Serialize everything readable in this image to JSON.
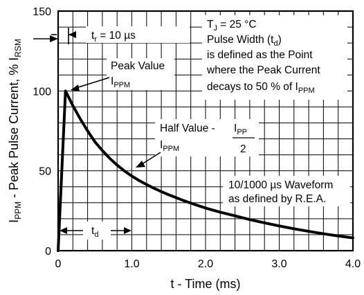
{
  "chart_data": {
    "type": "line",
    "xlabel": "t - Time (ms)",
    "ylabel_main": "I",
    "ylabel_sub": "PPM",
    "ylabel_rest": " - Peak Pulse Current, % ",
    "ylabel_main2": "I",
    "ylabel_sub2": "RSM",
    "xlim": [
      0,
      4.0
    ],
    "ylim": [
      0,
      150
    ],
    "x_ticks": [
      {
        "value": 0,
        "label": "0"
      },
      {
        "value": 1,
        "label": "1.0"
      },
      {
        "value": 2,
        "label": "2.0"
      },
      {
        "value": 3,
        "label": "3.0"
      },
      {
        "value": 4,
        "label": "4.0"
      }
    ],
    "y_ticks": [
      {
        "value": 0,
        "label": "0"
      },
      {
        "value": 50,
        "label": "50"
      },
      {
        "value": 100,
        "label": "100"
      },
      {
        "value": 150,
        "label": "150"
      }
    ],
    "x_minor_step": 0.2,
    "y_minor_step": 10,
    "grid": true,
    "series": [
      {
        "x": [
          0,
          0.1,
          0.2,
          0.3,
          0.4,
          0.5,
          0.6,
          0.7,
          0.8,
          0.9,
          1.0,
          1.1,
          1.2,
          1.3,
          1.4,
          1.5,
          1.6,
          1.7,
          1.8,
          1.9,
          2.0,
          2.2,
          2.4,
          2.6,
          2.8,
          3.0,
          3.2,
          3.4,
          3.6,
          3.8,
          4.0
        ],
        "y": [
          0,
          100,
          90.8,
          82.5,
          75.0,
          68.1,
          62.7,
          57.8,
          53.6,
          49.9,
          46.7,
          43.9,
          41.4,
          39.1,
          37.0,
          35.0,
          33.2,
          31.4,
          29.8,
          28.2,
          26.7,
          24.1,
          21.8,
          19.5,
          17.4,
          15.5,
          13.7,
          12.1,
          10.6,
          9.2,
          8.0
        ]
      }
    ],
    "annotations": {
      "tr": {
        "main": "t",
        "sub": "r",
        "rest": " = 10 µs"
      },
      "peak": {
        "line1": "Peak Value",
        "main": "I",
        "sub": "PPM"
      },
      "tj": {
        "main": "T",
        "sub": "J",
        "rest": " = 25 °C"
      },
      "pw": {
        "rest": "Pulse Width (t",
        "sub": "d",
        "close": ")"
      },
      "def1": "is defined as the Point",
      "def2": "where the Peak Current",
      "def3": {
        "rest": "decays to 50 % of I",
        "sub": "PPM"
      },
      "half": {
        "line1": "Half Value -",
        "main": "I",
        "sub": "PPM"
      },
      "frac": {
        "num_main": "I",
        "num_sub": "PP",
        "den": "2"
      },
      "wave1": "10/1000 µs Waveform",
      "wave2": "as defined by R.E.A.",
      "td": {
        "main": "t",
        "sub": "d"
      }
    }
  }
}
